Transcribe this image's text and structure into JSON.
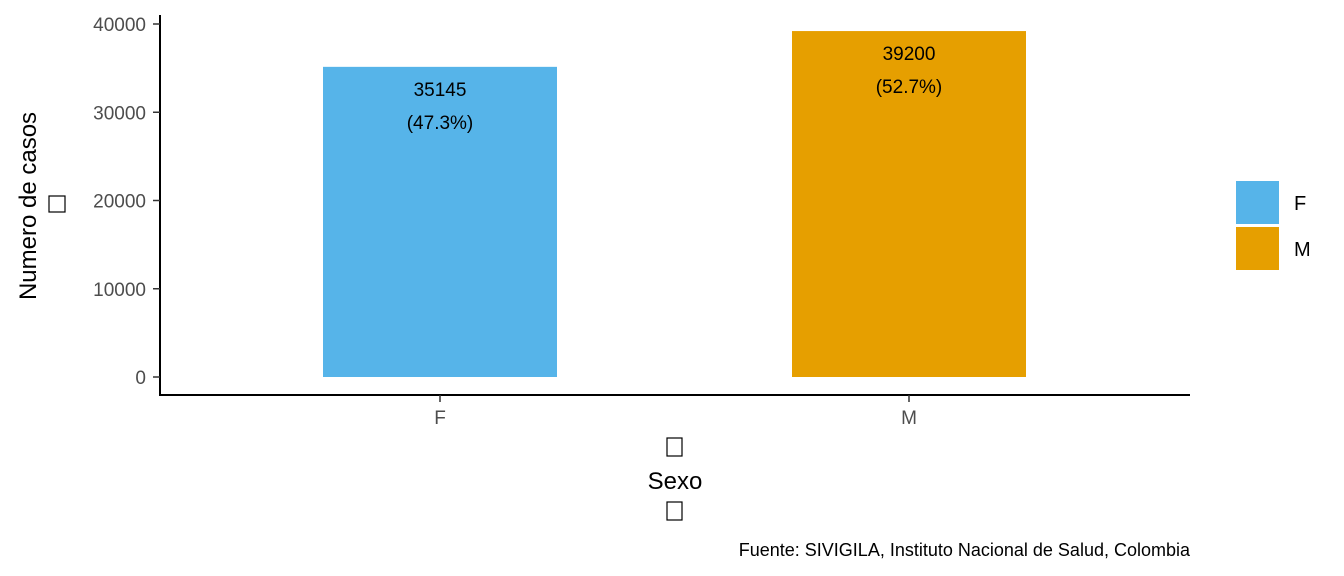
{
  "chart_data": {
    "type": "bar",
    "categories": [
      "F",
      "M"
    ],
    "values": [
      35145,
      39200
    ],
    "percent_labels": [
      "(47.3%)",
      "(52.7%)"
    ],
    "colors": [
      "#56B4E9",
      "#E69F00"
    ],
    "xlabel": "Sexo",
    "ylabel": "Numero de casos",
    "ylim": [
      0,
      40000
    ],
    "yticks": [
      0,
      10000,
      20000,
      30000,
      40000
    ],
    "grid": false,
    "legend": {
      "position": "right",
      "entries": [
        {
          "label": "F",
          "color": "#56B4E9"
        },
        {
          "label": "M",
          "color": "#E69F00"
        }
      ]
    },
    "caption": "Fuente: SIVIGILA, Instituto Nacional de Salud, Colombia"
  }
}
